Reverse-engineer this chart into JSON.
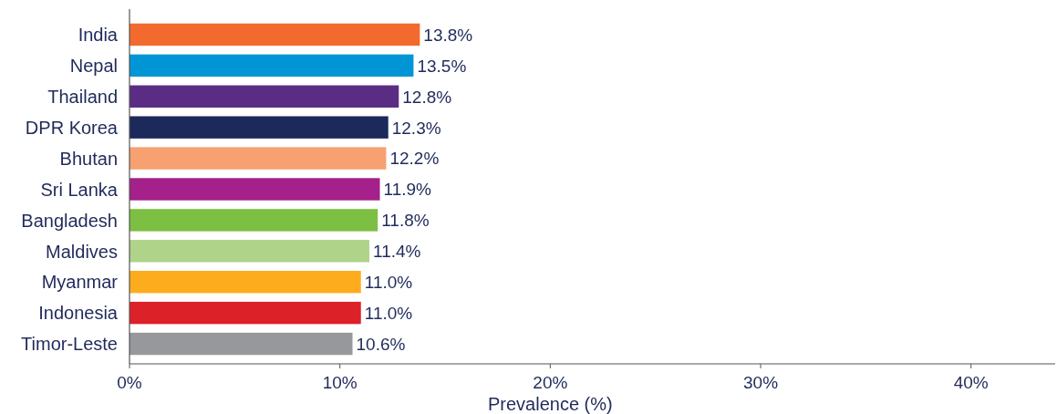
{
  "chart_data": {
    "type": "bar",
    "orientation": "horizontal",
    "xlabel": "Prevalence (%)",
    "categories": [
      "India",
      "Nepal",
      "Thailand",
      "DPR Korea",
      "Bhutan",
      "Sri Lanka",
      "Bangladesh",
      "Maldives",
      "Myanmar",
      "Indonesia",
      "Timor-Leste"
    ],
    "values": [
      13.8,
      13.5,
      12.8,
      12.3,
      12.2,
      11.9,
      11.8,
      11.4,
      11.0,
      11.0,
      10.6
    ],
    "colors": [
      "#f26a2e",
      "#0096d6",
      "#5b2c83",
      "#1b2a5a",
      "#f7a072",
      "#a4208a",
      "#7dbf42",
      "#b0d38a",
      "#fdac1d",
      "#dc2128",
      "#97989b"
    ],
    "value_labels": [
      "13.8%",
      "13.5%",
      "12.8%",
      "12.3%",
      "12.2%",
      "11.9%",
      "11.8%",
      "11.4%",
      "11.0%",
      "11.0%",
      "10.6%"
    ],
    "xlim": [
      0,
      44
    ],
    "xticks": [
      {
        "value": 0,
        "label": "0%"
      },
      {
        "value": 10,
        "label": "10%"
      },
      {
        "value": 20,
        "label": "20%"
      },
      {
        "value": 30,
        "label": "30%"
      },
      {
        "value": 40,
        "label": "40%"
      }
    ],
    "grid": false
  }
}
